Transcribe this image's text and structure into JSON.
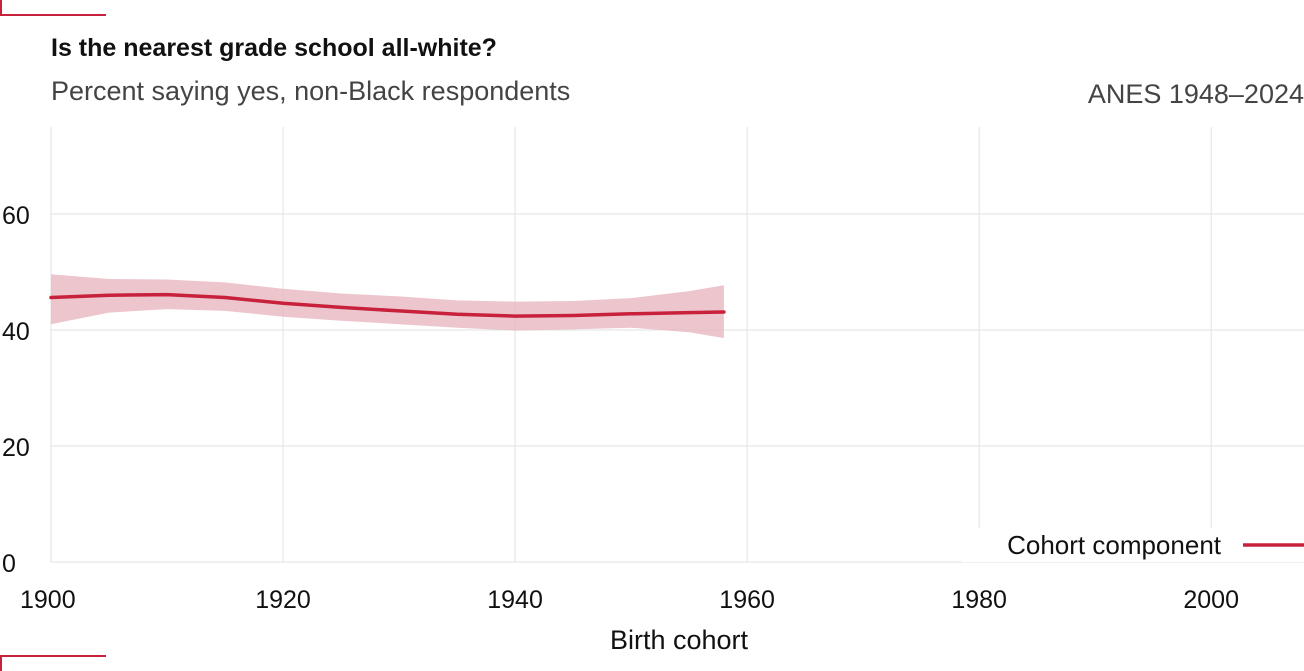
{
  "header": {
    "title": "Is the nearest grade school all-white?",
    "subtitle": "Percent saying yes, non-Black respondents",
    "source": "ANES 1948–2024"
  },
  "colors": {
    "accent": "#c8213b",
    "band": "#e8b8c0",
    "grid": "#e2e2e2"
  },
  "chart_data": {
    "type": "line",
    "xlabel": "Birth cohort",
    "ylabel": "",
    "xlim": [
      1900,
      2008
    ],
    "ylim": [
      0,
      75
    ],
    "x_ticks": [
      1900,
      1920,
      1940,
      1960,
      1980,
      2000
    ],
    "y_ticks": [
      0,
      20,
      40,
      60
    ],
    "grid": true,
    "legend_position": "bottom-right",
    "series": [
      {
        "name": "Cohort component",
        "color": "#c8213b",
        "x": [
          1900,
          1905,
          1910,
          1915,
          1920,
          1925,
          1930,
          1935,
          1940,
          1945,
          1950,
          1955,
          1958
        ],
        "y": [
          45.6,
          46.0,
          46.1,
          45.6,
          44.6,
          43.9,
          43.3,
          42.7,
          42.4,
          42.5,
          42.8,
          43.0,
          43.1
        ],
        "lower": [
          41.0,
          43.0,
          43.6,
          43.3,
          42.3,
          41.6,
          41.0,
          40.4,
          39.9,
          40.1,
          40.4,
          39.6,
          38.6
        ],
        "upper": [
          49.6,
          48.8,
          48.7,
          48.2,
          47.1,
          46.3,
          45.8,
          45.1,
          44.9,
          45.0,
          45.5,
          46.7,
          47.7
        ]
      }
    ]
  }
}
